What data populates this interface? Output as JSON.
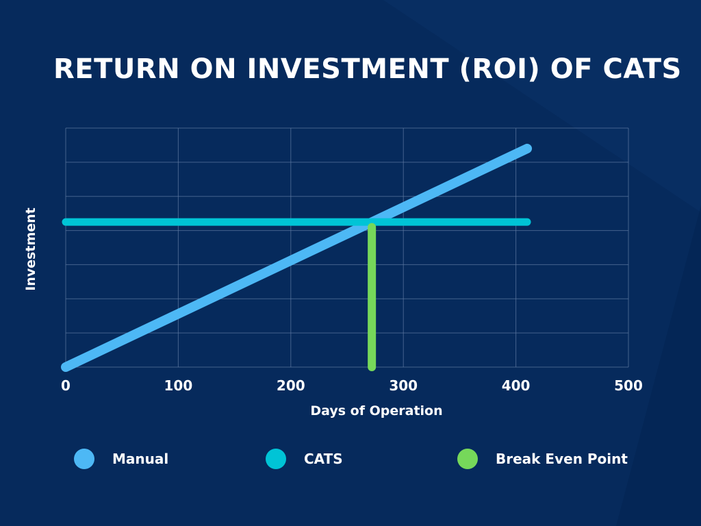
{
  "title": "RETURN ON INVESTMENT (ROI) OF CATS",
  "colors": {
    "background": "#062a5c",
    "grid": "#5f7aa3",
    "manual": "#4db8f5",
    "cats": "#00c4d6",
    "break_even": "#76d85a"
  },
  "legend": [
    {
      "label": "Manual",
      "color": "#4db8f5"
    },
    {
      "label": "CATS",
      "color": "#00c4d6"
    },
    {
      "label": "Break Even Point",
      "color": "#76d85a"
    }
  ],
  "chart_data": {
    "type": "line",
    "xlabel": "Days of Operation",
    "ylabel": "Investment",
    "xlim": [
      0,
      500
    ],
    "ylim": [
      0,
      7
    ],
    "xticks": [
      0,
      100,
      200,
      300,
      400,
      500
    ],
    "yticks_labeled": false,
    "grid": true,
    "legend_position": "bottom",
    "series": [
      {
        "name": "Manual",
        "x": [
          0,
          410
        ],
        "y": [
          0,
          6.4
        ]
      },
      {
        "name": "CATS",
        "x": [
          0,
          410
        ],
        "y": [
          4.25,
          4.25
        ]
      },
      {
        "name": "Break Even Point",
        "x": [
          272,
          272
        ],
        "y": [
          0,
          4.1
        ]
      }
    ]
  }
}
